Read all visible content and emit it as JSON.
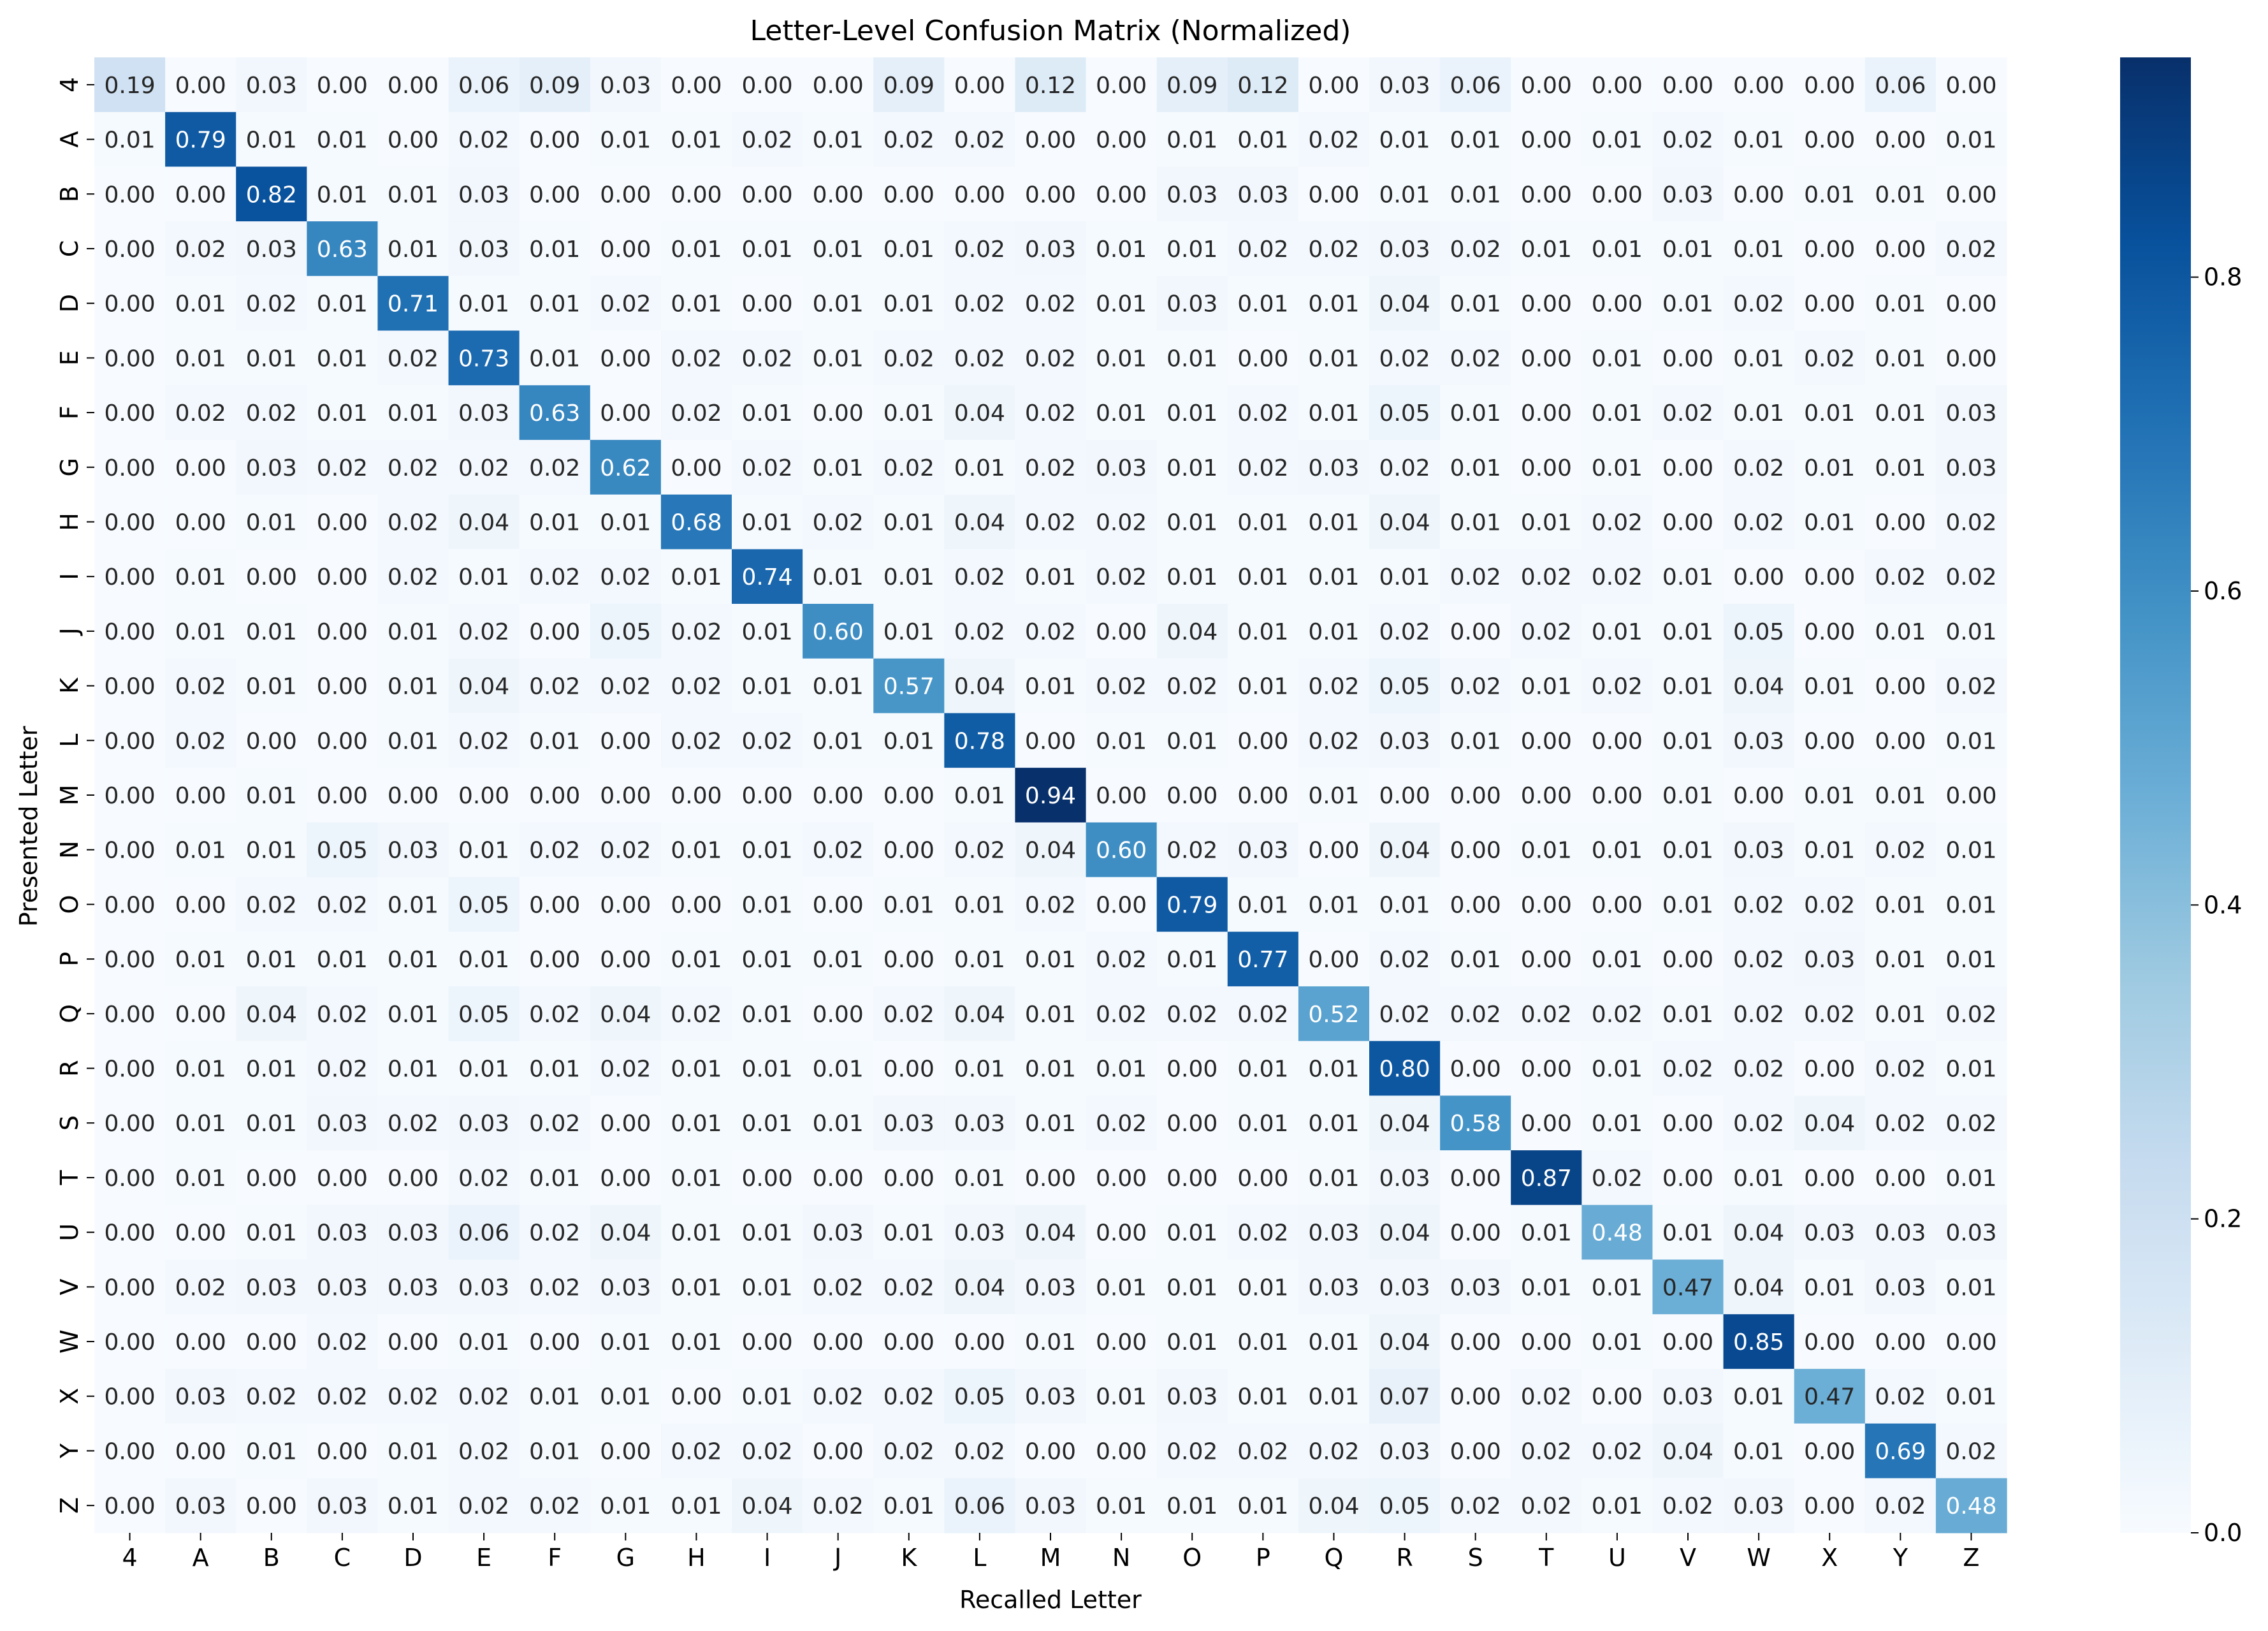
{
  "chart_data": {
    "type": "heatmap",
    "title": "Letter-Level Confusion Matrix (Normalized)",
    "xlabel": "Recalled Letter",
    "ylabel": "Presented Letter",
    "x_categories": [
      "4",
      "A",
      "B",
      "C",
      "D",
      "E",
      "F",
      "G",
      "H",
      "I",
      "J",
      "K",
      "L",
      "M",
      "N",
      "O",
      "P",
      "Q",
      "R",
      "S",
      "T",
      "U",
      "V",
      "W",
      "X",
      "Y",
      "Z"
    ],
    "y_categories": [
      "4",
      "A",
      "B",
      "C",
      "D",
      "E",
      "F",
      "G",
      "H",
      "I",
      "J",
      "K",
      "L",
      "M",
      "N",
      "O",
      "P",
      "Q",
      "R",
      "S",
      "T",
      "U",
      "V",
      "W",
      "X",
      "Y",
      "Z"
    ],
    "colormap": "Blues",
    "color_range": [
      0,
      0.94
    ],
    "colorbar_ticks": [
      "0.0",
      "0.2",
      "0.4",
      "0.6",
      "0.8"
    ],
    "values": [
      [
        0.19,
        0.0,
        0.03,
        0.0,
        0.0,
        0.06,
        0.09,
        0.03,
        0.0,
        0.0,
        0.0,
        0.09,
        0.0,
        0.12,
        0.0,
        0.09,
        0.12,
        0.0,
        0.03,
        0.06,
        0.0,
        0.0,
        0.0,
        0.0,
        0.0,
        0.06,
        0.0
      ],
      [
        0.01,
        0.79,
        0.01,
        0.01,
        0.0,
        0.02,
        0.0,
        0.01,
        0.01,
        0.02,
        0.01,
        0.02,
        0.02,
        0.0,
        0.0,
        0.01,
        0.01,
        0.02,
        0.01,
        0.01,
        0.0,
        0.01,
        0.02,
        0.01,
        0.0,
        0.0,
        0.01
      ],
      [
        0.0,
        0.0,
        0.82,
        0.01,
        0.01,
        0.03,
        0.0,
        0.0,
        0.0,
        0.0,
        0.0,
        0.0,
        0.0,
        0.0,
        0.0,
        0.03,
        0.03,
        0.0,
        0.01,
        0.01,
        0.0,
        0.0,
        0.03,
        0.0,
        0.01,
        0.01,
        0.0
      ],
      [
        0.0,
        0.02,
        0.03,
        0.63,
        0.01,
        0.03,
        0.01,
        0.0,
        0.01,
        0.01,
        0.01,
        0.01,
        0.02,
        0.03,
        0.01,
        0.01,
        0.02,
        0.02,
        0.03,
        0.02,
        0.01,
        0.01,
        0.01,
        0.01,
        0.0,
        0.0,
        0.02
      ],
      [
        0.0,
        0.01,
        0.02,
        0.01,
        0.71,
        0.01,
        0.01,
        0.02,
        0.01,
        0.0,
        0.01,
        0.01,
        0.02,
        0.02,
        0.01,
        0.03,
        0.01,
        0.01,
        0.04,
        0.01,
        0.0,
        0.0,
        0.01,
        0.02,
        0.0,
        0.01,
        0.0
      ],
      [
        0.0,
        0.01,
        0.01,
        0.01,
        0.02,
        0.73,
        0.01,
        0.0,
        0.02,
        0.02,
        0.01,
        0.02,
        0.02,
        0.02,
        0.01,
        0.01,
        0.0,
        0.01,
        0.02,
        0.02,
        0.0,
        0.01,
        0.0,
        0.01,
        0.02,
        0.01,
        0.0
      ],
      [
        0.0,
        0.02,
        0.02,
        0.01,
        0.01,
        0.03,
        0.63,
        0.0,
        0.02,
        0.01,
        0.0,
        0.01,
        0.04,
        0.02,
        0.01,
        0.01,
        0.02,
        0.01,
        0.05,
        0.01,
        0.0,
        0.01,
        0.02,
        0.01,
        0.01,
        0.01,
        0.03
      ],
      [
        0.0,
        0.0,
        0.03,
        0.02,
        0.02,
        0.02,
        0.02,
        0.62,
        0.0,
        0.02,
        0.01,
        0.02,
        0.01,
        0.02,
        0.03,
        0.01,
        0.02,
        0.03,
        0.02,
        0.01,
        0.0,
        0.01,
        0.0,
        0.02,
        0.01,
        0.01,
        0.03
      ],
      [
        0.0,
        0.0,
        0.01,
        0.0,
        0.02,
        0.04,
        0.01,
        0.01,
        0.68,
        0.01,
        0.02,
        0.01,
        0.04,
        0.02,
        0.02,
        0.01,
        0.01,
        0.01,
        0.04,
        0.01,
        0.01,
        0.02,
        0.0,
        0.02,
        0.01,
        0.0,
        0.02
      ],
      [
        0.0,
        0.01,
        0.0,
        0.0,
        0.02,
        0.01,
        0.02,
        0.02,
        0.01,
        0.74,
        0.01,
        0.01,
        0.02,
        0.01,
        0.02,
        0.01,
        0.01,
        0.01,
        0.01,
        0.02,
        0.02,
        0.02,
        0.01,
        0.0,
        0.0,
        0.02,
        0.02
      ],
      [
        0.0,
        0.01,
        0.01,
        0.0,
        0.01,
        0.02,
        0.0,
        0.05,
        0.02,
        0.01,
        0.6,
        0.01,
        0.02,
        0.02,
        0.0,
        0.04,
        0.01,
        0.01,
        0.02,
        0.0,
        0.02,
        0.01,
        0.01,
        0.05,
        0.0,
        0.01,
        0.01
      ],
      [
        0.0,
        0.02,
        0.01,
        0.0,
        0.01,
        0.04,
        0.02,
        0.02,
        0.02,
        0.01,
        0.01,
        0.57,
        0.04,
        0.01,
        0.02,
        0.02,
        0.01,
        0.02,
        0.05,
        0.02,
        0.01,
        0.02,
        0.01,
        0.04,
        0.01,
        0.0,
        0.02
      ],
      [
        0.0,
        0.02,
        0.0,
        0.0,
        0.01,
        0.02,
        0.01,
        0.0,
        0.02,
        0.02,
        0.01,
        0.01,
        0.78,
        0.0,
        0.01,
        0.01,
        0.0,
        0.02,
        0.03,
        0.01,
        0.0,
        0.0,
        0.01,
        0.03,
        0.0,
        0.0,
        0.01
      ],
      [
        0.0,
        0.0,
        0.01,
        0.0,
        0.0,
        0.0,
        0.0,
        0.0,
        0.0,
        0.0,
        0.0,
        0.0,
        0.01,
        0.94,
        0.0,
        0.0,
        0.0,
        0.01,
        0.0,
        0.0,
        0.0,
        0.0,
        0.01,
        0.0,
        0.01,
        0.01,
        0.0
      ],
      [
        0.0,
        0.01,
        0.01,
        0.05,
        0.03,
        0.01,
        0.02,
        0.02,
        0.01,
        0.01,
        0.02,
        0.0,
        0.02,
        0.04,
        0.6,
        0.02,
        0.03,
        0.0,
        0.04,
        0.0,
        0.01,
        0.01,
        0.01,
        0.03,
        0.01,
        0.02,
        0.01
      ],
      [
        0.0,
        0.0,
        0.02,
        0.02,
        0.01,
        0.05,
        0.0,
        0.0,
        0.0,
        0.01,
        0.0,
        0.01,
        0.01,
        0.02,
        0.0,
        0.79,
        0.01,
        0.01,
        0.01,
        0.0,
        0.0,
        0.0,
        0.01,
        0.02,
        0.02,
        0.01,
        0.01
      ],
      [
        0.0,
        0.01,
        0.01,
        0.01,
        0.01,
        0.01,
        0.0,
        0.0,
        0.01,
        0.01,
        0.01,
        0.0,
        0.01,
        0.01,
        0.02,
        0.01,
        0.77,
        0.0,
        0.02,
        0.01,
        0.0,
        0.01,
        0.0,
        0.02,
        0.03,
        0.01,
        0.01
      ],
      [
        0.0,
        0.0,
        0.04,
        0.02,
        0.01,
        0.05,
        0.02,
        0.04,
        0.02,
        0.01,
        0.0,
        0.02,
        0.04,
        0.01,
        0.02,
        0.02,
        0.02,
        0.52,
        0.02,
        0.02,
        0.02,
        0.02,
        0.01,
        0.02,
        0.02,
        0.01,
        0.02
      ],
      [
        0.0,
        0.01,
        0.01,
        0.02,
        0.01,
        0.01,
        0.01,
        0.02,
        0.01,
        0.01,
        0.01,
        0.0,
        0.01,
        0.01,
        0.01,
        0.0,
        0.01,
        0.01,
        0.8,
        0.0,
        0.0,
        0.01,
        0.02,
        0.02,
        0.0,
        0.02,
        0.01
      ],
      [
        0.0,
        0.01,
        0.01,
        0.03,
        0.02,
        0.03,
        0.02,
        0.0,
        0.01,
        0.01,
        0.01,
        0.03,
        0.03,
        0.01,
        0.02,
        0.0,
        0.01,
        0.01,
        0.04,
        0.58,
        0.0,
        0.01,
        0.0,
        0.02,
        0.04,
        0.02,
        0.02
      ],
      [
        0.0,
        0.01,
        0.0,
        0.0,
        0.0,
        0.02,
        0.01,
        0.0,
        0.01,
        0.0,
        0.0,
        0.0,
        0.01,
        0.0,
        0.0,
        0.0,
        0.0,
        0.01,
        0.03,
        0.0,
        0.87,
        0.02,
        0.0,
        0.01,
        0.0,
        0.0,
        0.01
      ],
      [
        0.0,
        0.0,
        0.01,
        0.03,
        0.03,
        0.06,
        0.02,
        0.04,
        0.01,
        0.01,
        0.03,
        0.01,
        0.03,
        0.04,
        0.0,
        0.01,
        0.02,
        0.03,
        0.04,
        0.0,
        0.01,
        0.48,
        0.01,
        0.04,
        0.03,
        0.03,
        0.03
      ],
      [
        0.0,
        0.02,
        0.03,
        0.03,
        0.03,
        0.03,
        0.02,
        0.03,
        0.01,
        0.01,
        0.02,
        0.02,
        0.04,
        0.03,
        0.01,
        0.01,
        0.01,
        0.03,
        0.03,
        0.03,
        0.01,
        0.01,
        0.47,
        0.04,
        0.01,
        0.03,
        0.01
      ],
      [
        0.0,
        0.0,
        0.0,
        0.02,
        0.0,
        0.01,
        0.0,
        0.01,
        0.01,
        0.0,
        0.0,
        0.0,
        0.0,
        0.01,
        0.0,
        0.01,
        0.01,
        0.01,
        0.04,
        0.0,
        0.0,
        0.01,
        0.0,
        0.85,
        0.0,
        0.0,
        0.0
      ],
      [
        0.0,
        0.03,
        0.02,
        0.02,
        0.02,
        0.02,
        0.01,
        0.01,
        0.0,
        0.01,
        0.02,
        0.02,
        0.05,
        0.03,
        0.01,
        0.03,
        0.01,
        0.01,
        0.07,
        0.0,
        0.02,
        0.0,
        0.03,
        0.01,
        0.47,
        0.02,
        0.01
      ],
      [
        0.0,
        0.0,
        0.01,
        0.0,
        0.01,
        0.02,
        0.01,
        0.0,
        0.02,
        0.02,
        0.0,
        0.02,
        0.02,
        0.0,
        0.0,
        0.02,
        0.02,
        0.02,
        0.03,
        0.0,
        0.02,
        0.02,
        0.04,
        0.01,
        0.0,
        0.69,
        0.02
      ],
      [
        0.0,
        0.03,
        0.0,
        0.03,
        0.01,
        0.02,
        0.02,
        0.01,
        0.01,
        0.04,
        0.02,
        0.01,
        0.06,
        0.03,
        0.01,
        0.01,
        0.01,
        0.04,
        0.05,
        0.02,
        0.02,
        0.01,
        0.02,
        0.03,
        0.0,
        0.02,
        0.48
      ]
    ]
  }
}
